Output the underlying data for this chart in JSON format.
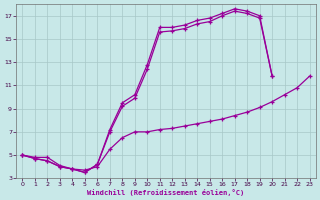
{
  "bg_color": "#c8e8e8",
  "grid_color": "#a8c8c8",
  "line_color": "#990099",
  "xlabel": "Windchill (Refroidissement éolien,°C)",
  "xlim": [
    0,
    23
  ],
  "ylim": [
    3,
    18
  ],
  "xticks": [
    0,
    1,
    2,
    3,
    4,
    5,
    6,
    7,
    8,
    9,
    10,
    11,
    12,
    13,
    14,
    15,
    16,
    17,
    18,
    19,
    20,
    21,
    22,
    23
  ],
  "yticks": [
    3,
    5,
    7,
    9,
    11,
    13,
    15,
    17
  ],
  "curve1_x": [
    0,
    1,
    2,
    3,
    4,
    5,
    6,
    7,
    8,
    9,
    10,
    11,
    12,
    13,
    14,
    15,
    16,
    17,
    18,
    19,
    20
  ],
  "curve1_y": [
    5.0,
    4.7,
    4.5,
    4.0,
    3.8,
    3.5,
    4.2,
    7.2,
    9.5,
    10.2,
    12.8,
    16.0,
    16.0,
    16.2,
    16.6,
    16.8,
    17.2,
    17.6,
    17.4,
    17.0,
    11.8
  ],
  "curve2_x": [
    0,
    1,
    2,
    3,
    4,
    5,
    6,
    7,
    8,
    9,
    10,
    11,
    12,
    13,
    14,
    15,
    16,
    17,
    18,
    19,
    20
  ],
  "curve2_y": [
    5.0,
    4.7,
    4.5,
    4.0,
    3.8,
    3.5,
    4.2,
    7.0,
    9.2,
    9.9,
    12.4,
    15.6,
    15.7,
    15.9,
    16.3,
    16.5,
    17.0,
    17.4,
    17.2,
    16.8,
    11.8
  ],
  "curve3_x": [
    0,
    1,
    2,
    3,
    4,
    5,
    6,
    7,
    8,
    9,
    10,
    11,
    12,
    13,
    14,
    15,
    16,
    17,
    18,
    19,
    20,
    21,
    22,
    23
  ],
  "curve3_y": [
    5.0,
    4.8,
    4.8,
    4.1,
    3.8,
    3.7,
    4.0,
    5.5,
    6.5,
    7.0,
    7.0,
    7.2,
    7.3,
    7.5,
    7.7,
    7.9,
    8.1,
    8.4,
    8.7,
    9.1,
    9.6,
    10.2,
    10.8,
    11.8
  ]
}
